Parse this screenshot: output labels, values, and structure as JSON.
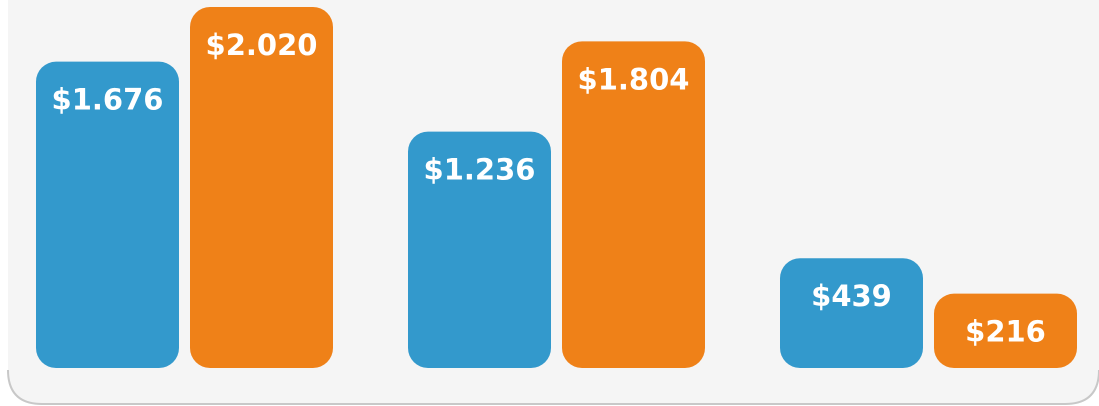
{
  "chart_data": {
    "type": "bar",
    "categories": [
      null,
      null,
      null
    ],
    "series": [
      {
        "color": "#3399cc",
        "values": [
          1676,
          1236,
          439
        ],
        "value_labels": [
          "$1.676",
          "$1.236",
          "$439"
        ]
      },
      {
        "color": "#ef8118",
        "values": [
          2020,
          1804,
          216
        ],
        "value_labels": [
          "$2.020",
          "$1.804",
          "$216"
        ]
      }
    ]
  }
}
